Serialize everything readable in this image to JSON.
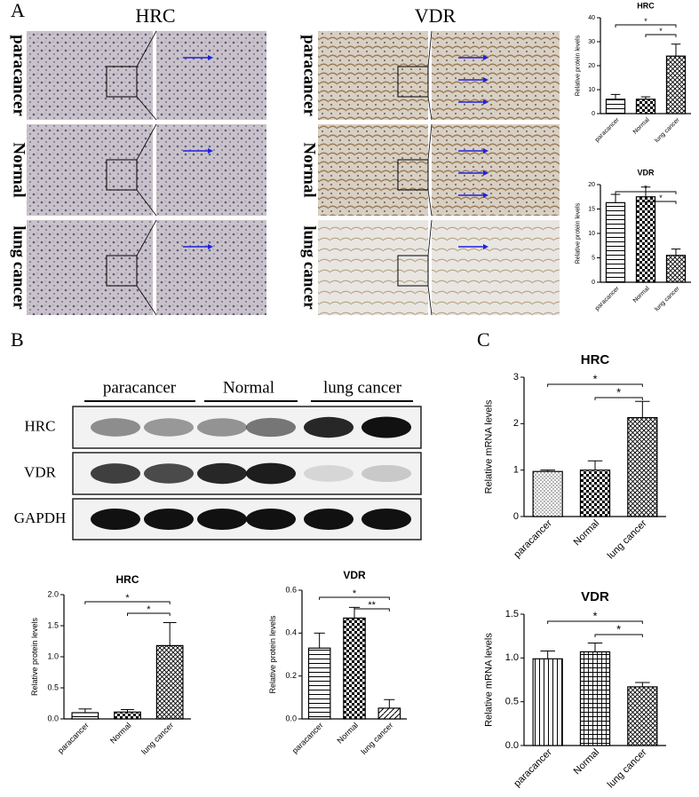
{
  "panel_labels": [
    "A",
    "B",
    "C"
  ],
  "ihc": {
    "stains": [
      "HRC",
      "VDR"
    ],
    "rows": [
      "paracancer",
      "Normal",
      "lung cancer"
    ]
  },
  "blot": {
    "groups": [
      "paracancer",
      "Normal",
      "lung cancer"
    ],
    "rows": [
      "HRC",
      "VDR",
      "GAPDH"
    ]
  },
  "chart_data": [
    {
      "type": "bar",
      "title": "HRC",
      "ylabel": "Relative protein levels",
      "categories": [
        "paracancer",
        "Normal",
        "lung cancer"
      ],
      "values": [
        6,
        6,
        24
      ],
      "errors": [
        2,
        1,
        5
      ],
      "patterns": [
        "hlines",
        "checker",
        "crosshatch"
      ],
      "ylim": [
        0,
        40
      ],
      "yticks": [
        0,
        10,
        20,
        30,
        40
      ],
      "annotations": [
        {
          "label": "*",
          "span": [
            0,
            2
          ]
        },
        {
          "label": "*",
          "span": [
            1,
            2
          ]
        }
      ]
    },
    {
      "type": "bar",
      "title": "VDR",
      "ylabel": "Relative protein levels",
      "categories": [
        "paracancer",
        "Normal",
        "lung cancer"
      ],
      "values": [
        16.3,
        17.5,
        5.5
      ],
      "errors": [
        1.7,
        2,
        1.3
      ],
      "patterns": [
        "hlines",
        "checker",
        "crosshatch"
      ],
      "ylim": [
        0,
        20
      ],
      "yticks": [
        0,
        5,
        10,
        15,
        20
      ],
      "annotations": [
        {
          "label": "*",
          "span": [
            0,
            2
          ]
        },
        {
          "label": "*",
          "span": [
            1,
            2
          ]
        }
      ]
    },
    {
      "type": "bar",
      "title": "HRC",
      "ylabel": "Relative protein levels",
      "categories": [
        "paracancer",
        "Normal",
        "lung cancer"
      ],
      "values": [
        0.1,
        0.11,
        1.18
      ],
      "errors": [
        0.06,
        0.04,
        0.37
      ],
      "patterns": [
        "hlines",
        "checker",
        "crosshatch"
      ],
      "ylim": [
        0,
        2
      ],
      "yticks": [
        {
          "value": 0,
          "label": "0.0"
        },
        0.5,
        {
          "value": 1,
          "label": "1.0"
        },
        1.5,
        {
          "value": 2,
          "label": "2.0"
        }
      ],
      "annotations": [
        {
          "label": "*",
          "span": [
            0,
            2
          ]
        },
        {
          "label": "*",
          "span": [
            1,
            2
          ]
        }
      ]
    },
    {
      "type": "bar",
      "title": "VDR",
      "ylabel": "Relative protein levels",
      "categories": [
        "paracancer",
        "Normal",
        "lung cancer"
      ],
      "values": [
        0.33,
        0.47,
        0.05
      ],
      "errors": [
        0.07,
        0.05,
        0.04
      ],
      "patterns": [
        "hlines",
        "checker",
        "diag"
      ],
      "ylim": [
        0,
        0.6
      ],
      "yticks": [
        {
          "value": 0,
          "label": "0.0"
        },
        0.2,
        0.4,
        0.6
      ],
      "annotations": [
        {
          "label": "*",
          "span": [
            0,
            2
          ]
        },
        {
          "label": "**",
          "span": [
            1,
            2
          ]
        }
      ]
    },
    {
      "type": "bar",
      "title": "HRC",
      "ylabel": "Relative mRNA levels",
      "categories": [
        "paracancer",
        "Normal",
        "lung cancer"
      ],
      "values": [
        0.97,
        1.0,
        2.13
      ],
      "errors": [
        0.03,
        0.2,
        0.35
      ],
      "patterns": [
        "dots",
        "checker",
        "crosshatch"
      ],
      "ylim": [
        0,
        3
      ],
      "yticks": [
        0,
        1,
        2,
        3
      ],
      "annotations": [
        {
          "label": "*",
          "span": [
            0,
            2
          ]
        },
        {
          "label": "*",
          "span": [
            1,
            2
          ]
        }
      ]
    },
    {
      "type": "bar",
      "title": "VDR",
      "ylabel": "Relative mRNA levels",
      "categories": [
        "paracancer",
        "Normal",
        "lung cancer"
      ],
      "values": [
        0.99,
        1.07,
        0.67
      ],
      "errors": [
        0.09,
        0.1,
        0.05
      ],
      "patterns": [
        "vlines",
        "grid",
        "crosshatch"
      ],
      "ylim": [
        0,
        1.5
      ],
      "yticks": [
        {
          "value": 0,
          "label": "0.0"
        },
        0.5,
        {
          "value": 1,
          "label": "1.0"
        },
        1.5
      ],
      "annotations": [
        {
          "label": "*",
          "span": [
            0,
            2
          ]
        },
        {
          "label": "*",
          "span": [
            1,
            2
          ]
        }
      ]
    }
  ]
}
